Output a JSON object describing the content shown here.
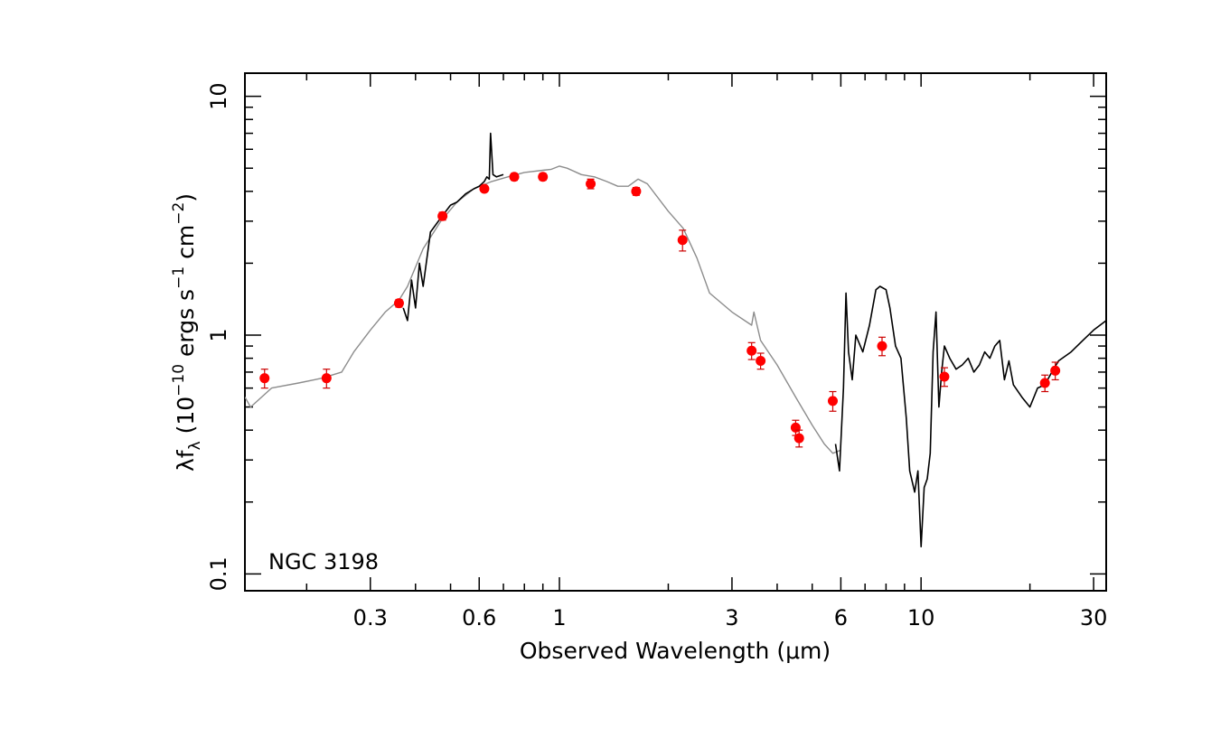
{
  "chart_data": {
    "type": "line",
    "title": "",
    "annotation": "NGC 3198",
    "xlabel": "Observed Wavelength (μm)",
    "ylabel": {
      "lead": "λf",
      "lead_sub": "λ",
      "paren_open": " (10",
      "exp1": "−10",
      "mid": " ergs s",
      "exp2": "−1",
      "mid2": " cm",
      "exp3": "−2",
      "close": ")"
    },
    "x_scale": "log",
    "y_scale": "log",
    "xlim": [
      0.135,
      32.5
    ],
    "ylim": [
      0.085,
      12.5
    ],
    "x_tick_labels": [
      "0.3",
      "0.6",
      "1",
      "3",
      "6",
      "10",
      "30"
    ],
    "x_tick_values": [
      0.3,
      0.6,
      1,
      3,
      6,
      10,
      30
    ],
    "y_tick_labels": [
      "0.1",
      "1",
      "10"
    ],
    "y_tick_values": [
      0.1,
      1,
      10
    ],
    "grid": false,
    "colors": {
      "model": "#8c8c8c",
      "spectrum": "#000000",
      "photometry": "#ff0000",
      "errorbar": "#cc0000"
    },
    "series": [
      {
        "kind": "model",
        "x": [
          0.135,
          0.14,
          0.16,
          0.19,
          0.21,
          0.22,
          0.25,
          0.27,
          0.3,
          0.33,
          0.36,
          0.38,
          0.42,
          0.47,
          0.52,
          0.58,
          0.65,
          0.72,
          0.8,
          0.9,
          0.95,
          1.0,
          1.05,
          1.15,
          1.25,
          1.35,
          1.45,
          1.55,
          1.65,
          1.75,
          2.0,
          2.2,
          2.4,
          2.6,
          3.0,
          3.4,
          3.45,
          3.6,
          4.0,
          4.5,
          5.0,
          5.4,
          5.7,
          6.0
        ],
        "y": [
          0.55,
          0.5,
          0.6,
          0.63,
          0.65,
          0.66,
          0.7,
          0.85,
          1.05,
          1.25,
          1.4,
          1.6,
          2.3,
          3.0,
          3.6,
          4.1,
          4.4,
          4.6,
          4.8,
          4.9,
          4.95,
          5.1,
          5.0,
          4.7,
          4.6,
          4.4,
          4.2,
          4.2,
          4.5,
          4.3,
          3.3,
          2.8,
          2.1,
          1.5,
          1.25,
          1.1,
          1.25,
          0.95,
          0.75,
          0.55,
          0.42,
          0.35,
          0.32,
          0.33
        ]
      },
      {
        "kind": "spectrum",
        "x": [
          0.37,
          0.38,
          0.39,
          0.4,
          0.41,
          0.42,
          0.44,
          0.47,
          0.5,
          0.52,
          0.55,
          0.58,
          0.6,
          0.62,
          0.63,
          0.64,
          0.645,
          0.655,
          0.67,
          0.7
        ],
        "y": [
          1.3,
          1.15,
          1.7,
          1.3,
          2.0,
          1.6,
          2.7,
          3.1,
          3.5,
          3.6,
          3.9,
          4.1,
          4.2,
          4.4,
          4.6,
          4.5,
          7.0,
          4.7,
          4.6,
          4.7
        ]
      },
      {
        "kind": "spectrum",
        "x": [
          5.8,
          5.95,
          6.1,
          6.2,
          6.3,
          6.45,
          6.6,
          6.9,
          7.2,
          7.5,
          7.7,
          8.0,
          8.2,
          8.5,
          8.8,
          9.1,
          9.3,
          9.6,
          9.8,
          10.0,
          10.2,
          10.4,
          10.6,
          10.8,
          11.0,
          11.2,
          11.4,
          11.6,
          12.0,
          12.5,
          13.0,
          13.5,
          14.0,
          14.5,
          15.0,
          15.5,
          16.0,
          16.5,
          17.0,
          17.5,
          18.0,
          19.0,
          20.0,
          21.0,
          22.0,
          23.0,
          24.0,
          26.0,
          28.0,
          30.0,
          32.5
        ],
        "y": [
          0.35,
          0.27,
          0.6,
          1.5,
          0.85,
          0.65,
          1.0,
          0.85,
          1.1,
          1.55,
          1.6,
          1.55,
          1.3,
          0.9,
          0.8,
          0.45,
          0.27,
          0.22,
          0.27,
          0.13,
          0.23,
          0.25,
          0.32,
          0.85,
          1.25,
          0.5,
          0.7,
          0.9,
          0.8,
          0.72,
          0.75,
          0.8,
          0.7,
          0.75,
          0.85,
          0.8,
          0.9,
          0.95,
          0.65,
          0.78,
          0.62,
          0.55,
          0.5,
          0.6,
          0.62,
          0.7,
          0.78,
          0.85,
          0.95,
          1.05,
          1.15
        ]
      }
    ],
    "photometry": {
      "x": [
        0.153,
        0.227,
        0.36,
        0.475,
        0.62,
        0.75,
        0.9,
        1.22,
        1.63,
        2.19,
        3.4,
        3.6,
        4.5,
        4.6,
        5.7,
        7.8,
        11.6,
        22.0,
        23.5
      ],
      "y": [
        0.66,
        0.66,
        1.36,
        3.15,
        4.1,
        4.6,
        4.6,
        4.3,
        4.0,
        2.5,
        0.86,
        0.78,
        0.41,
        0.37,
        0.53,
        0.9,
        0.67,
        0.63,
        0.71
      ],
      "err": [
        0.06,
        0.06,
        0.05,
        0.12,
        0.12,
        0.15,
        0.15,
        0.2,
        0.15,
        0.25,
        0.07,
        0.06,
        0.03,
        0.03,
        0.05,
        0.08,
        0.06,
        0.05,
        0.06
      ]
    }
  }
}
